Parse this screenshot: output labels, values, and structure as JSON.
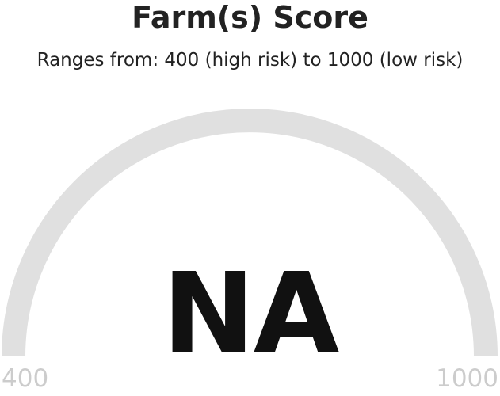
{
  "gauge": {
    "title": "Farm(s) Score",
    "subtitle": "Ranges from: 400 (high risk) to 1000 (low risk)",
    "value_display": "NA",
    "min_label": "400",
    "max_label": "1000",
    "min": 400,
    "max": 1000,
    "track_color": "#e0e0e0",
    "value_text_color": "#111111",
    "axis_label_color": "#cccccc"
  }
}
